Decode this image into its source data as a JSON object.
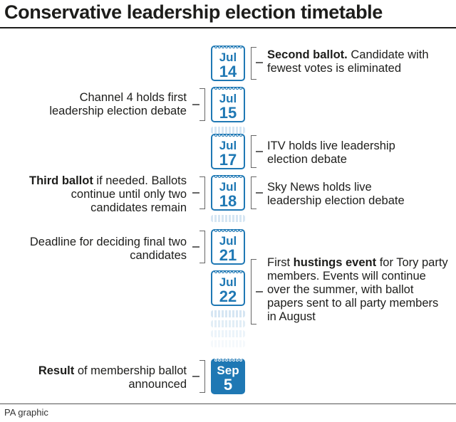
{
  "title": "Conservative leadership election timetable",
  "footer": "PA graphic",
  "events": [
    {
      "month": "Jul",
      "day": "14",
      "side": "right",
      "bold": "Second ballot.",
      "text": " Candidate with fewest votes is eliminated"
    },
    {
      "month": "Jul",
      "day": "15",
      "side": "left",
      "bold": "",
      "text": "Channel 4 holds first leadership election debate"
    },
    {
      "month": "Jul",
      "day": "17",
      "side": "right",
      "bold": "",
      "text": "ITV holds live leadership election debate"
    },
    {
      "month": "Jul",
      "day": "18",
      "side": "left",
      "bold": "Third ballot",
      "text": " if needed. Ballots continue until only two candidates remain"
    },
    {
      "month": "Jul",
      "day": "18",
      "side": "right",
      "bold": "",
      "text": "Sky News holds live leadership election debate"
    },
    {
      "month": "Jul",
      "day": "21",
      "side": "left",
      "bold": "",
      "text": "Deadline for deciding final two candidates"
    },
    {
      "month": "Jul",
      "day": "22",
      "side": "right",
      "before": "First ",
      "bold": "hustings event",
      "text": " for Tory party members. Events will continue over the summer, with ballot papers sent to all party members in August"
    },
    {
      "month": "Sep",
      "day": "5",
      "side": "left",
      "bold": "Result",
      "text": " of membership ballot announced"
    }
  ],
  "colors": {
    "accent": "#1f78b4",
    "text": "#1d1d1b"
  }
}
